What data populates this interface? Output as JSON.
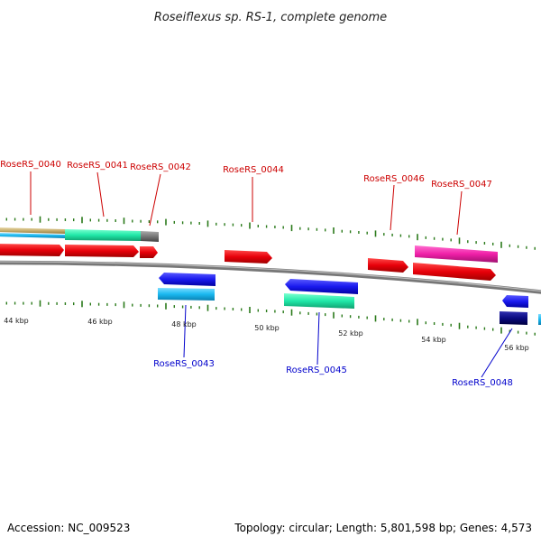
{
  "title": "Roseiflexus sp. RS-1, complete genome",
  "footer": {
    "accession": "Accession: NC_009523",
    "summary": "Topology: circular; Length: 5,801,598 bp; Genes: 4,573"
  },
  "colors": {
    "forward_label": "#cc0000",
    "reverse_label": "#0000cc",
    "tick": "#2a7a1a",
    "backbone": "#888888",
    "gene_red": "#e8000a",
    "gene_blue": "#1a1aee",
    "gene_cyan": "#1ab8f0",
    "gene_teal": "#20e8a8",
    "gene_pink": "#f020a8",
    "gene_gray": "#777777",
    "gene_tan": "#c8b070",
    "gene_navy": "#0a0a80"
  },
  "axis": {
    "scale_labels": [
      "44 kbp",
      "46 kbp",
      "48 kbp",
      "50 kbp",
      "52 kbp",
      "54 kbp",
      "56 kbp"
    ]
  },
  "forward_labels": [
    "RoseRS_0040",
    "RoseRS_0041",
    "RoseRS_0042",
    "RoseRS_0044",
    "RoseRS_0046",
    "RoseRS_0047"
  ],
  "reverse_labels": [
    "RoseRS_0043",
    "RoseRS_0045",
    "RoseRS_0048"
  ]
}
